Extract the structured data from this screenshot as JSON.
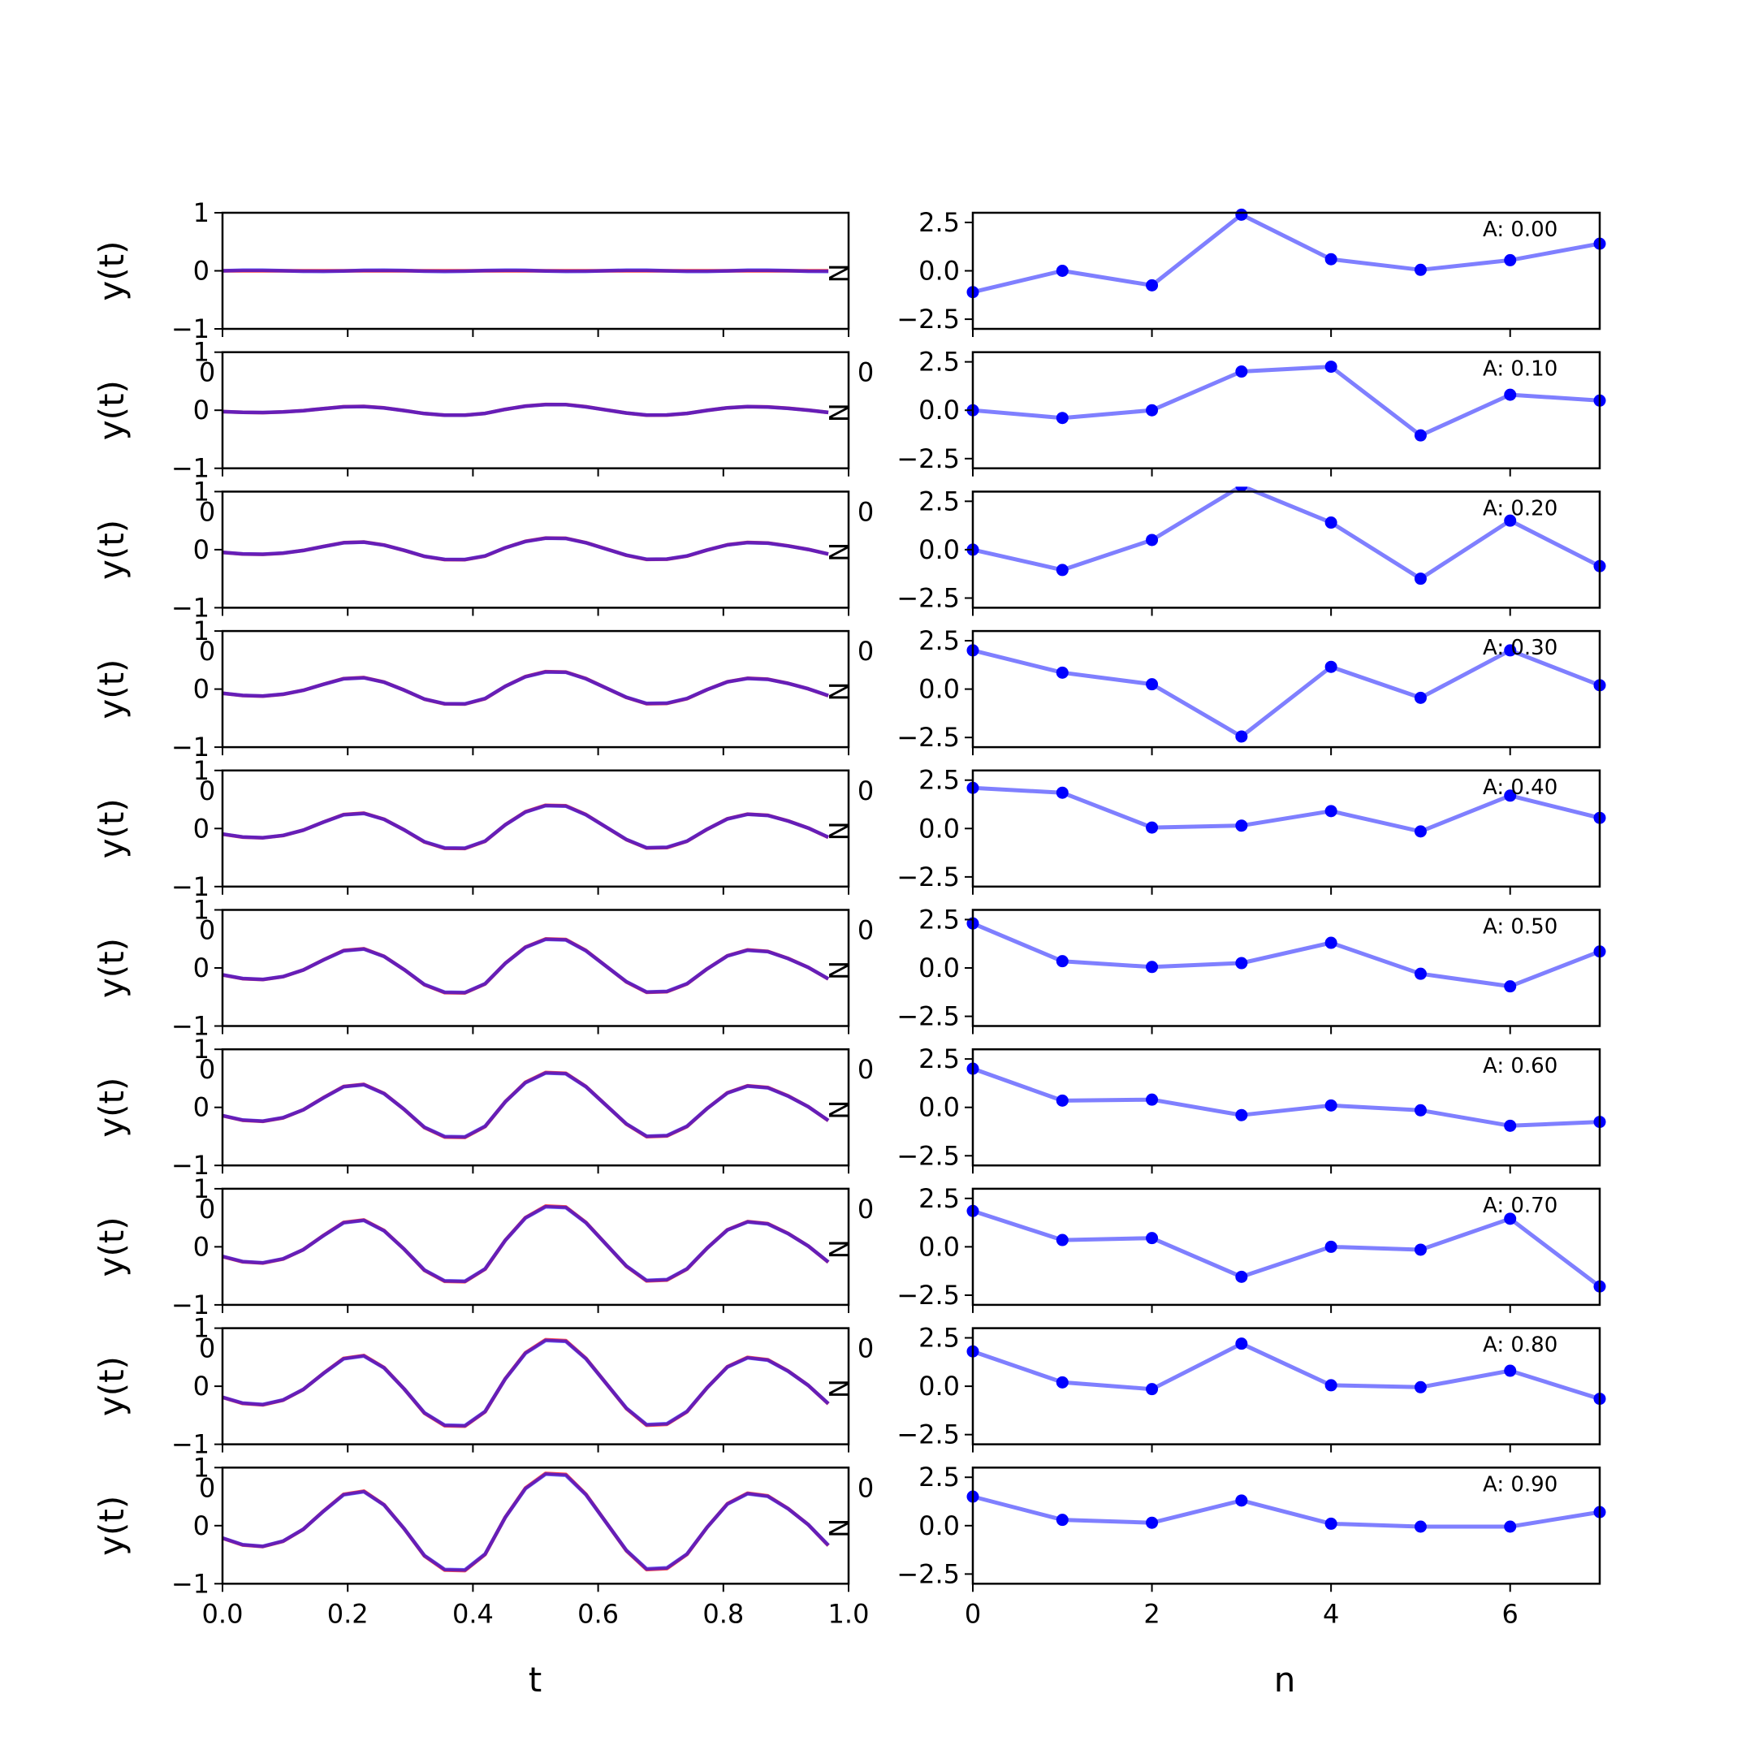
{
  "colors": {
    "signal_red": "#ff0000",
    "signal_blue": "#0000ff",
    "axes": "#000000",
    "background": "#ffffff"
  },
  "chart_data": [
    {
      "type": "line",
      "panel": "time-domain",
      "ylabel": "y(t)",
      "xlabel": "t",
      "xlim": [
        0.0,
        1.0
      ],
      "ylim": [
        -1,
        1
      ],
      "xticks": [
        0.0,
        0.2,
        0.4,
        0.6,
        0.8,
        1.0
      ],
      "xtick_labels": [
        "0.0",
        "0.2",
        "0.4",
        "0.6",
        "0.8",
        "1.0"
      ],
      "yticks": [
        -1,
        0,
        1
      ],
      "ytick_labels": [
        "−1",
        "0",
        "1"
      ],
      "side_label": "N",
      "stray_labels": [
        "0",
        "0"
      ],
      "t": [
        0.0,
        0.0323,
        0.0645,
        0.0968,
        0.129,
        0.1613,
        0.1935,
        0.2258,
        0.2581,
        0.2903,
        0.3226,
        0.3548,
        0.3871,
        0.4194,
        0.4516,
        0.4839,
        0.5161,
        0.5484,
        0.5806,
        0.6129,
        0.6452,
        0.6774,
        0.7097,
        0.7419,
        0.7742,
        0.8065,
        0.8387,
        0.871,
        0.9032,
        0.9355,
        0.9677
      ],
      "waveform": [
        -0.24,
        -0.37,
        -0.4,
        -0.3,
        -0.07,
        0.28,
        0.6,
        0.66,
        0.4,
        -0.06,
        -0.58,
        -0.85,
        -0.86,
        -0.55,
        0.16,
        0.72,
        1.0,
        0.98,
        0.6,
        0.06,
        -0.48,
        -0.84,
        -0.82,
        -0.55,
        -0.03,
        0.42,
        0.62,
        0.57,
        0.33,
        0.02,
        -0.38
      ],
      "amplitudes": [
        0.0,
        0.1,
        0.2,
        0.3,
        0.4,
        0.5,
        0.6,
        0.7,
        0.8,
        0.9
      ],
      "series": [
        {
          "color": "red",
          "scale_note": ""
        },
        {
          "color": "blue",
          "scale_note": ""
        }
      ]
    },
    {
      "type": "line",
      "panel": "sample-domain",
      "xlabel": "n",
      "xlim": [
        0,
        7
      ],
      "ylim": [
        -3.0,
        3.0
      ],
      "xticks": [
        0,
        2,
        4,
        6
      ],
      "xtick_labels": [
        "0",
        "2",
        "4",
        "6"
      ],
      "yticks": [
        2.5,
        0.0,
        -2.5
      ],
      "ytick_labels": [
        "2.5",
        "0.0",
        "−2.5"
      ],
      "n": [
        0,
        1,
        2,
        3,
        4,
        5,
        6,
        7
      ],
      "panels": [
        {
          "annotation": "A: 0.00",
          "values": [
            -1.1,
            0.0,
            -0.75,
            2.9,
            0.6,
            0.05,
            0.55,
            1.4
          ]
        },
        {
          "annotation": "A: 0.10",
          "values": [
            0.0,
            -0.4,
            0.0,
            2.0,
            2.25,
            -1.3,
            0.8,
            0.5
          ]
        },
        {
          "annotation": "A: 0.20",
          "values": [
            0.0,
            -1.05,
            0.5,
            3.3,
            1.4,
            -1.5,
            1.5,
            -0.85
          ]
        },
        {
          "annotation": "A: 0.30",
          "values": [
            2.0,
            0.85,
            0.25,
            -2.45,
            1.15,
            -0.45,
            2.0,
            0.2
          ]
        },
        {
          "annotation": "A: 0.40",
          "values": [
            2.1,
            1.85,
            0.05,
            0.15,
            0.9,
            -0.15,
            1.7,
            0.55
          ]
        },
        {
          "annotation": "A: 0.50",
          "values": [
            2.3,
            0.35,
            0.05,
            0.25,
            1.3,
            -0.3,
            -0.95,
            0.85
          ]
        },
        {
          "annotation": "A: 0.60",
          "values": [
            2.0,
            0.35,
            0.4,
            -0.4,
            0.1,
            -0.15,
            -0.95,
            -0.75
          ]
        },
        {
          "annotation": "A: 0.70",
          "values": [
            1.85,
            0.35,
            0.45,
            -1.55,
            0.0,
            -0.15,
            1.45,
            -2.05
          ]
        },
        {
          "annotation": "A: 0.80",
          "values": [
            1.8,
            0.2,
            -0.15,
            2.2,
            0.05,
            -0.05,
            0.8,
            -0.65
          ]
        },
        {
          "annotation": "A: 0.90",
          "values": [
            1.5,
            0.3,
            0.15,
            1.3,
            0.1,
            -0.05,
            -0.05,
            0.7
          ]
        }
      ]
    }
  ]
}
